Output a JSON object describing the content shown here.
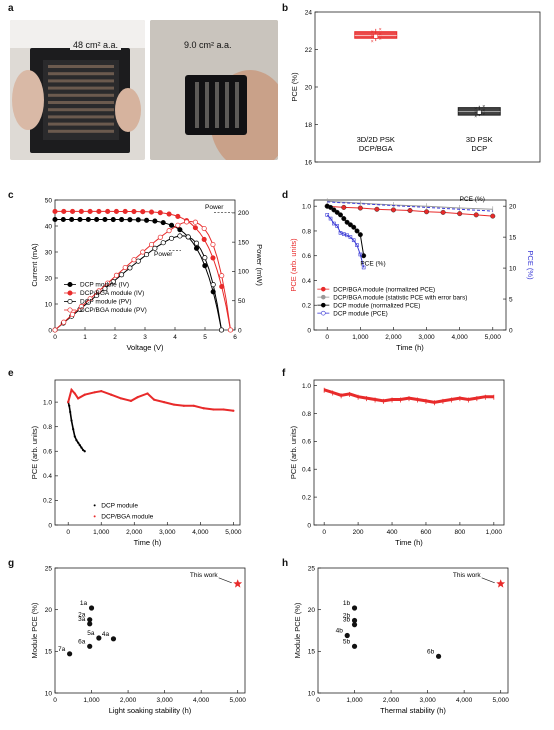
{
  "panel_letters": [
    "a",
    "b",
    "c",
    "d",
    "e",
    "f",
    "g",
    "h"
  ],
  "photos": [
    {
      "caption": "48 cm² a.a.",
      "bg": "#e9e7e4",
      "device": "#1c1c1e"
    },
    {
      "caption": "9.0 cm² a.a.",
      "bg": "#cfcac4",
      "device": "#111113"
    }
  ],
  "chart_data": [
    {
      "panel": "b",
      "type": "box",
      "categories": [
        [
          "3D/2D PSK",
          "DCP/BGA"
        ],
        [
          "3D PSK",
          "DCP"
        ]
      ],
      "colors": [
        "#e82a2a",
        "#222222"
      ],
      "boxes": [
        {
          "q1": 22.6,
          "median": 22.75,
          "q3": 22.95,
          "mean": 22.7,
          "min": 22.45,
          "max": 23.1
        },
        {
          "q1": 18.5,
          "median": 18.7,
          "q3": 18.9,
          "mean": 18.65,
          "min": 18.45,
          "max": 19.0
        }
      ],
      "ylabel": "PCE (%)",
      "ylim": [
        16,
        24
      ],
      "yticks": [
        16,
        18,
        20,
        22,
        24
      ]
    },
    {
      "panel": "c",
      "type": "line",
      "xlabel": "Voltage (V)",
      "ylabel": "Current (mA)",
      "y2label": "Power (mW)",
      "xlim": [
        0,
        6
      ],
      "ylim": [
        0,
        50
      ],
      "y2lim": [
        0,
        222
      ],
      "xticks": [
        0,
        1,
        2,
        3,
        4,
        5,
        6
      ],
      "yticks": [
        0,
        10,
        20,
        30,
        40,
        50
      ],
      "y2ticks": [
        0,
        50,
        100,
        150,
        200
      ],
      "annotations": [
        "Power",
        "Power"
      ],
      "series": [
        {
          "name": "DCP module (IV)",
          "color": "#000000",
          "marker": "filled",
          "axis": "left",
          "isc": 42.5,
          "voc": 5.55,
          "n": 1.45
        },
        {
          "name": "DCP/BGA module (IV)",
          "color": "#e82a2a",
          "marker": "filled",
          "axis": "left",
          "isc": 45.6,
          "voc": 5.85,
          "n": 1.35
        },
        {
          "name": "DCP module (PV)",
          "color": "#000000",
          "marker": "open",
          "axis": "right",
          "isc": 42.5,
          "voc": 5.55,
          "n": 1.45
        },
        {
          "name": "DCP/BGA module (PV)",
          "color": "#e82a2a",
          "marker": "open",
          "axis": "right",
          "isc": 45.6,
          "voc": 5.85,
          "n": 1.35
        }
      ]
    },
    {
      "panel": "d",
      "type": "line",
      "xlabel": "Time (h)",
      "ylabel": "PCE (arb. units)",
      "y2label": "PCE (%)",
      "xlim": [
        -400,
        5400
      ],
      "ylim": [
        0,
        1.05
      ],
      "y2lim": [
        0,
        21
      ],
      "xticks": [
        0,
        1000,
        2000,
        3000,
        4000,
        5000
      ],
      "xticklabels": [
        "0",
        "1,000",
        "2,000",
        "3,000",
        "4,000",
        "5,000"
      ],
      "yticks": [
        0,
        0.2,
        0.4,
        0.6,
        0.8,
        1.0
      ],
      "yticklabels": [
        "0",
        "0.2",
        "0.4",
        "0.6",
        "0.8",
        "1.0"
      ],
      "y2ticks": [
        0,
        5,
        10,
        15,
        20
      ],
      "annotations": [
        "PCE (%)",
        "PCE (%)"
      ],
      "series": [
        {
          "name": "DCP/BGA module (normalized PCE)",
          "color": "#e82a2a",
          "axis": "left",
          "x": [
            0,
            500,
            1000,
            1500,
            2000,
            2500,
            3000,
            3500,
            4000,
            4500,
            5000
          ],
          "y": [
            1.0,
            0.99,
            0.985,
            0.975,
            0.97,
            0.965,
            0.955,
            0.95,
            0.94,
            0.93,
            0.92
          ]
        },
        {
          "name": "DCP/BGA module (statistic PCE with error bars)",
          "color": "#999999",
          "axis": "right",
          "x": [
            0,
            1000,
            2000,
            3000,
            4000,
            5000
          ],
          "y": [
            20.8,
            20.5,
            20.2,
            20.0,
            19.7,
            19.5
          ]
        },
        {
          "name": "DCP module (normalized PCE)",
          "color": "#000000",
          "axis": "left",
          "x": [
            0,
            100,
            200,
            300,
            400,
            500,
            600,
            700,
            800,
            900,
            1000,
            1100
          ],
          "y": [
            1.0,
            0.99,
            0.97,
            0.95,
            0.93,
            0.9,
            0.87,
            0.85,
            0.83,
            0.8,
            0.77,
            0.6
          ]
        },
        {
          "name": "DCP module (PCE)",
          "color": "#3a3ad6",
          "axis": "right",
          "x": [
            0,
            100,
            200,
            300,
            400,
            500,
            600,
            700,
            800,
            900,
            1000,
            1100
          ],
          "y": [
            18.6,
            18.0,
            17.2,
            16.8,
            15.7,
            15.5,
            15.3,
            15.0,
            14.5,
            13.7,
            12.2,
            10.1
          ]
        },
        {
          "name": "",
          "color": "#3a3ad6",
          "axis": "right",
          "dashed": true,
          "x": [
            0,
            1000,
            2000,
            3000,
            4000,
            5000
          ],
          "y": [
            20.7,
            20.4,
            20.1,
            19.8,
            19.5,
            19.2
          ]
        }
      ]
    },
    {
      "panel": "e",
      "type": "scatter",
      "xlabel": "Time (h)",
      "ylabel": "PCE (arb. units)",
      "xlim": [
        -400,
        5200
      ],
      "ylim": [
        0,
        1.18
      ],
      "xticks": [
        0,
        1000,
        2000,
        3000,
        4000,
        5000
      ],
      "xticklabels": [
        "0",
        "1,000",
        "2,000",
        "3,000",
        "4,000",
        "5,000"
      ],
      "yticks": [
        0,
        0.2,
        0.4,
        0.6,
        0.8,
        1.0
      ],
      "yticklabels": [
        "0",
        "0.2",
        "0.4",
        "0.6",
        "0.8",
        "1.0"
      ],
      "series": [
        {
          "name": "DCP module",
          "color": "#000000",
          "x": [
            0,
            30,
            60,
            100,
            150,
            200,
            250,
            300,
            350,
            400,
            450,
            500
          ],
          "y": [
            1.0,
            0.97,
            0.92,
            0.85,
            0.78,
            0.72,
            0.69,
            0.67,
            0.65,
            0.63,
            0.61,
            0.6
          ]
        },
        {
          "name": "DCP/BGA module",
          "color": "#e82a2a",
          "x": [
            0,
            100,
            200,
            300,
            500,
            800,
            1000,
            1300,
            1600,
            1900,
            2100,
            2400,
            2600,
            2900,
            3200,
            3500,
            3800,
            4100,
            4400,
            4700,
            5000
          ],
          "y": [
            1.0,
            1.1,
            1.07,
            1.03,
            1.06,
            1.08,
            1.09,
            1.06,
            1.03,
            1.01,
            1.04,
            1.07,
            1.02,
            1.0,
            0.98,
            0.97,
            0.97,
            0.95,
            0.94,
            0.94,
            0.93
          ]
        }
      ]
    },
    {
      "panel": "f",
      "type": "line",
      "xlabel": "Time (h)",
      "ylabel": "PCE (arb. units)",
      "xlim": [
        -60,
        1060
      ],
      "ylim": [
        0,
        1.04
      ],
      "xticks": [
        0,
        200,
        400,
        600,
        800,
        1000
      ],
      "xticklabels": [
        "0",
        "200",
        "400",
        "600",
        "800",
        "1,000"
      ],
      "yticks": [
        0,
        0.2,
        0.4,
        0.6,
        0.8,
        1.0
      ],
      "yticklabels": [
        "0",
        "0.2",
        "0.4",
        "0.6",
        "0.8",
        "1.0"
      ],
      "series": [
        {
          "name": "",
          "color": "#e82a2a",
          "x": [
            0,
            50,
            100,
            150,
            200,
            250,
            300,
            350,
            400,
            450,
            500,
            550,
            600,
            650,
            700,
            750,
            800,
            850,
            900,
            950,
            1000
          ],
          "y": [
            0.97,
            0.95,
            0.93,
            0.94,
            0.92,
            0.91,
            0.9,
            0.89,
            0.9,
            0.9,
            0.91,
            0.9,
            0.89,
            0.88,
            0.89,
            0.9,
            0.91,
            0.9,
            0.91,
            0.92,
            0.92
          ]
        }
      ]
    },
    {
      "panel": "g",
      "type": "scatter",
      "xlabel": "Light soaking stability (h)",
      "ylabel": "Module PCE (%)",
      "xlim": [
        0,
        5200
      ],
      "ylim": [
        10,
        25
      ],
      "xticks": [
        0,
        1000,
        2000,
        3000,
        4000,
        5000
      ],
      "xticklabels": [
        "0",
        "1,000",
        "2,000",
        "3,000",
        "4,000",
        "5,000"
      ],
      "yticks": [
        10,
        15,
        20,
        25
      ],
      "points": [
        {
          "label": "1a",
          "x": 1000,
          "y": 20.2
        },
        {
          "label": "2a",
          "x": 950,
          "y": 18.8
        },
        {
          "label": "3a",
          "x": 950,
          "y": 18.3
        },
        {
          "label": "5a",
          "x": 1200,
          "y": 16.6
        },
        {
          "label": "4a",
          "x": 1600,
          "y": 16.5
        },
        {
          "label": "6a",
          "x": 950,
          "y": 15.6
        },
        {
          "label": "7a",
          "x": 400,
          "y": 14.7
        }
      ],
      "star": {
        "label": "This work",
        "x": 5000,
        "y": 23.1,
        "color": "#e82a2a"
      }
    },
    {
      "panel": "h",
      "type": "scatter",
      "xlabel": "Thermal stability (h)",
      "ylabel": "Module PCE (%)",
      "xlim": [
        0,
        5200
      ],
      "ylim": [
        10,
        25
      ],
      "xticks": [
        0,
        1000,
        2000,
        3000,
        4000,
        5000
      ],
      "xticklabels": [
        "0",
        "1,000",
        "2,000",
        "3,000",
        "4,000",
        "5,000"
      ],
      "yticks": [
        10,
        15,
        20,
        25
      ],
      "points": [
        {
          "label": "1b",
          "x": 1000,
          "y": 20.2
        },
        {
          "label": "2b",
          "x": 1000,
          "y": 18.7
        },
        {
          "label": "3b",
          "x": 1000,
          "y": 18.2
        },
        {
          "label": "4b",
          "x": 800,
          "y": 16.9
        },
        {
          "label": "5b",
          "x": 1000,
          "y": 15.6
        },
        {
          "label": "6b",
          "x": 3300,
          "y": 14.4
        }
      ],
      "star": {
        "label": "This work",
        "x": 5000,
        "y": 23.1,
        "color": "#e82a2a"
      }
    }
  ]
}
